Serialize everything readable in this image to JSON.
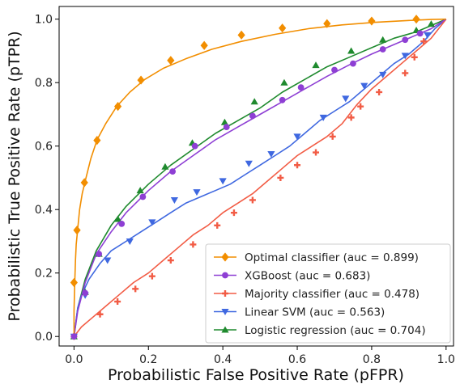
{
  "chart_data": {
    "type": "line",
    "xlabel": "Probabilistic False Positive Rate (pFPR)",
    "ylabel": "Probabilistic True Positive Rate (pTPR)",
    "xlim": [
      -0.04,
      1.02
    ],
    "ylim": [
      -0.03,
      1.04
    ],
    "xticks": [
      "0.0",
      "0.2",
      "0.4",
      "0.6",
      "0.8",
      "1.0"
    ],
    "yticks": [
      "0.0",
      "0.2",
      "0.4",
      "0.6",
      "0.8",
      "1.0"
    ],
    "legend_position": "lower-right",
    "series": [
      {
        "name": "Optimal classifier (auc = 0.899)",
        "color": "#f28e00",
        "marker": "diamond",
        "x": [
          0.0,
          0.0,
          0.002,
          0.004,
          0.006,
          0.01,
          0.015,
          0.022,
          0.03,
          0.045,
          0.062,
          0.085,
          0.115,
          0.15,
          0.19,
          0.24,
          0.3,
          0.37,
          0.45,
          0.54,
          0.63,
          0.72,
          0.81,
          0.9,
          0.96,
          1.0
        ],
        "y": [
          0.0,
          0.08,
          0.17,
          0.24,
          0.29,
          0.34,
          0.4,
          0.45,
          0.49,
          0.56,
          0.62,
          0.67,
          0.725,
          0.77,
          0.81,
          0.845,
          0.875,
          0.905,
          0.93,
          0.952,
          0.97,
          0.982,
          0.99,
          0.996,
          0.999,
          1.0
        ],
        "marker_x": [
          0.0,
          0.008,
          0.028,
          0.062,
          0.118,
          0.18,
          0.26,
          0.35,
          0.45,
          0.56,
          0.68,
          0.8,
          0.92
        ],
        "marker_y": [
          0.17,
          0.335,
          0.485,
          0.618,
          0.725,
          0.808,
          0.87,
          0.917,
          0.95,
          0.972,
          0.986,
          0.994,
          1.0
        ]
      },
      {
        "name": "XGBoost (auc = 0.683)",
        "color": "#8e3fd4",
        "marker": "circle",
        "x": [
          0.0,
          0.01,
          0.03,
          0.06,
          0.1,
          0.14,
          0.2,
          0.26,
          0.32,
          0.38,
          0.44,
          0.5,
          0.56,
          0.62,
          0.68,
          0.74,
          0.8,
          0.86,
          0.92,
          0.96,
          1.0
        ],
        "y": [
          0.0,
          0.08,
          0.17,
          0.26,
          0.33,
          0.39,
          0.46,
          0.52,
          0.57,
          0.62,
          0.66,
          0.7,
          0.74,
          0.78,
          0.82,
          0.856,
          0.89,
          0.92,
          0.95,
          0.97,
          1.0
        ],
        "marker_x": [
          0.0,
          0.03,
          0.067,
          0.128,
          0.185,
          0.265,
          0.325,
          0.41,
          0.48,
          0.56,
          0.61,
          0.7,
          0.75,
          0.83,
          0.89,
          0.93
        ],
        "marker_y": [
          0.0,
          0.137,
          0.26,
          0.355,
          0.44,
          0.52,
          0.6,
          0.66,
          0.695,
          0.745,
          0.785,
          0.84,
          0.86,
          0.905,
          0.935,
          0.955
        ]
      },
      {
        "name": "Majority classifier (auc = 0.478)",
        "color": "#f25c45",
        "marker": "plus",
        "x": [
          0.0,
          0.02,
          0.05,
          0.08,
          0.12,
          0.16,
          0.2,
          0.24,
          0.28,
          0.32,
          0.36,
          0.4,
          0.44,
          0.48,
          0.52,
          0.56,
          0.6,
          0.64,
          0.68,
          0.72,
          0.76,
          0.8,
          0.84,
          0.88,
          0.92,
          0.96,
          1.0
        ],
        "y": [
          0.0,
          0.03,
          0.06,
          0.09,
          0.13,
          0.17,
          0.2,
          0.24,
          0.28,
          0.32,
          0.35,
          0.39,
          0.42,
          0.45,
          0.49,
          0.53,
          0.57,
          0.6,
          0.63,
          0.67,
          0.73,
          0.78,
          0.82,
          0.86,
          0.9,
          0.94,
          1.0
        ],
        "marker_x": [
          0.0,
          0.07,
          0.117,
          0.165,
          0.21,
          0.26,
          0.32,
          0.385,
          0.43,
          0.48,
          0.555,
          0.6,
          0.65,
          0.695,
          0.745,
          0.77,
          0.82,
          0.89,
          0.915,
          0.94
        ],
        "marker_y": [
          0.0,
          0.07,
          0.11,
          0.15,
          0.19,
          0.24,
          0.29,
          0.35,
          0.39,
          0.43,
          0.5,
          0.54,
          0.58,
          0.63,
          0.69,
          0.725,
          0.77,
          0.83,
          0.88,
          0.93
        ]
      },
      {
        "name": "Linear SVM (auc = 0.563)",
        "color": "#3f68e0",
        "marker": "triangle-down",
        "x": [
          0.0,
          0.01,
          0.02,
          0.04,
          0.07,
          0.1,
          0.14,
          0.18,
          0.22,
          0.26,
          0.3,
          0.34,
          0.38,
          0.42,
          0.46,
          0.5,
          0.54,
          0.58,
          0.62,
          0.66,
          0.7,
          0.74,
          0.78,
          0.82,
          0.86,
          0.9,
          0.94,
          0.97,
          1.0
        ],
        "y": [
          0.0,
          0.09,
          0.13,
          0.18,
          0.23,
          0.27,
          0.3,
          0.33,
          0.36,
          0.39,
          0.42,
          0.44,
          0.46,
          0.48,
          0.51,
          0.54,
          0.57,
          0.6,
          0.64,
          0.68,
          0.71,
          0.74,
          0.78,
          0.82,
          0.86,
          0.89,
          0.93,
          0.97,
          1.0
        ],
        "marker_x": [
          0.0,
          0.03,
          0.09,
          0.15,
          0.21,
          0.27,
          0.33,
          0.4,
          0.47,
          0.53,
          0.6,
          0.67,
          0.73,
          0.78,
          0.83,
          0.89,
          0.95
        ],
        "marker_y": [
          0.0,
          0.13,
          0.24,
          0.3,
          0.36,
          0.43,
          0.455,
          0.49,
          0.545,
          0.575,
          0.63,
          0.69,
          0.75,
          0.79,
          0.825,
          0.885,
          0.95
        ]
      },
      {
        "name": "Logistic regression (auc = 0.704)",
        "color": "#1f8a2e",
        "marker": "triangle-up",
        "x": [
          0.0,
          0.01,
          0.03,
          0.06,
          0.1,
          0.14,
          0.2,
          0.26,
          0.32,
          0.38,
          0.44,
          0.5,
          0.56,
          0.62,
          0.68,
          0.74,
          0.8,
          0.86,
          0.92,
          0.96,
          1.0
        ],
        "y": [
          0.0,
          0.09,
          0.18,
          0.27,
          0.35,
          0.41,
          0.48,
          0.54,
          0.59,
          0.64,
          0.68,
          0.72,
          0.77,
          0.81,
          0.85,
          0.88,
          0.91,
          0.94,
          0.96,
          0.98,
          1.0
        ],
        "marker_x": [
          0.0,
          0.03,
          0.067,
          0.118,
          0.178,
          0.245,
          0.318,
          0.405,
          0.485,
          0.565,
          0.65,
          0.745,
          0.83,
          0.92,
          0.96
        ],
        "marker_y": [
          0.0,
          0.14,
          0.26,
          0.37,
          0.46,
          0.535,
          0.61,
          0.675,
          0.74,
          0.8,
          0.855,
          0.9,
          0.935,
          0.965,
          0.985
        ]
      }
    ]
  }
}
